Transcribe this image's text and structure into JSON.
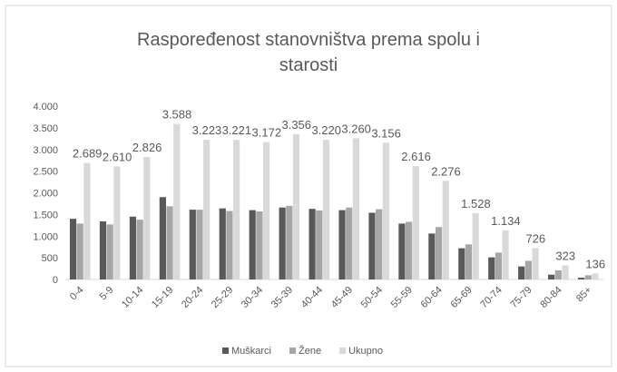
{
  "chart_data": {
    "type": "bar",
    "title": "Raspoređenost  stanovništva prema spolu i starosti",
    "categories": [
      "0-4",
      "5-9",
      "10-14",
      "15-19",
      "20-24",
      "25-29",
      "30-34",
      "35-39",
      "40-44",
      "45-49",
      "50-54",
      "55-59",
      "60-64",
      "65-69",
      "70-74",
      "75-79",
      "80-84",
      "85+"
    ],
    "series": [
      {
        "name": "Muškarci",
        "color": "#595959",
        "values": [
          1400,
          1340,
          1450,
          1900,
          1610,
          1640,
          1600,
          1660,
          1630,
          1600,
          1540,
          1290,
          1060,
          720,
          510,
          300,
          110,
          40
        ]
      },
      {
        "name": "Žene",
        "color": "#a6a6a6",
        "values": [
          1290,
          1270,
          1380,
          1690,
          1610,
          1580,
          1570,
          1700,
          1590,
          1660,
          1620,
          1330,
          1210,
          810,
          620,
          430,
          210,
          96
        ]
      },
      {
        "name": "Ukupno",
        "color": "#d9d9d9",
        "values": [
          2689,
          2610,
          2826,
          3588,
          3223,
          3221,
          3172,
          3356,
          3220,
          3260,
          3156,
          2616,
          2276,
          1528,
          1134,
          726,
          323,
          136
        ],
        "value_labels": [
          "2.689",
          "2.610",
          "2.826",
          "3.588",
          "3.223",
          "3.221",
          "3.172",
          "3.356",
          "3.220",
          "3.260",
          "3.156",
          "2.616",
          "2.276",
          "1.528",
          "1.134",
          "726",
          "323",
          "136"
        ]
      }
    ],
    "ylim": [
      0,
      4000
    ],
    "yticks": [
      0,
      500,
      {
        "value": 1000,
        "label": "1.000"
      },
      {
        "value": 1500,
        "label": "1.500"
      },
      {
        "value": 2000,
        "label": "2.000"
      },
      {
        "value": 2500,
        "label": "2.500"
      },
      {
        "value": 3000,
        "label": "3.000"
      },
      {
        "value": 3500,
        "label": "3.500"
      },
      {
        "value": 4000,
        "label": "4.000"
      }
    ],
    "grid": false,
    "legend": "bottom"
  }
}
